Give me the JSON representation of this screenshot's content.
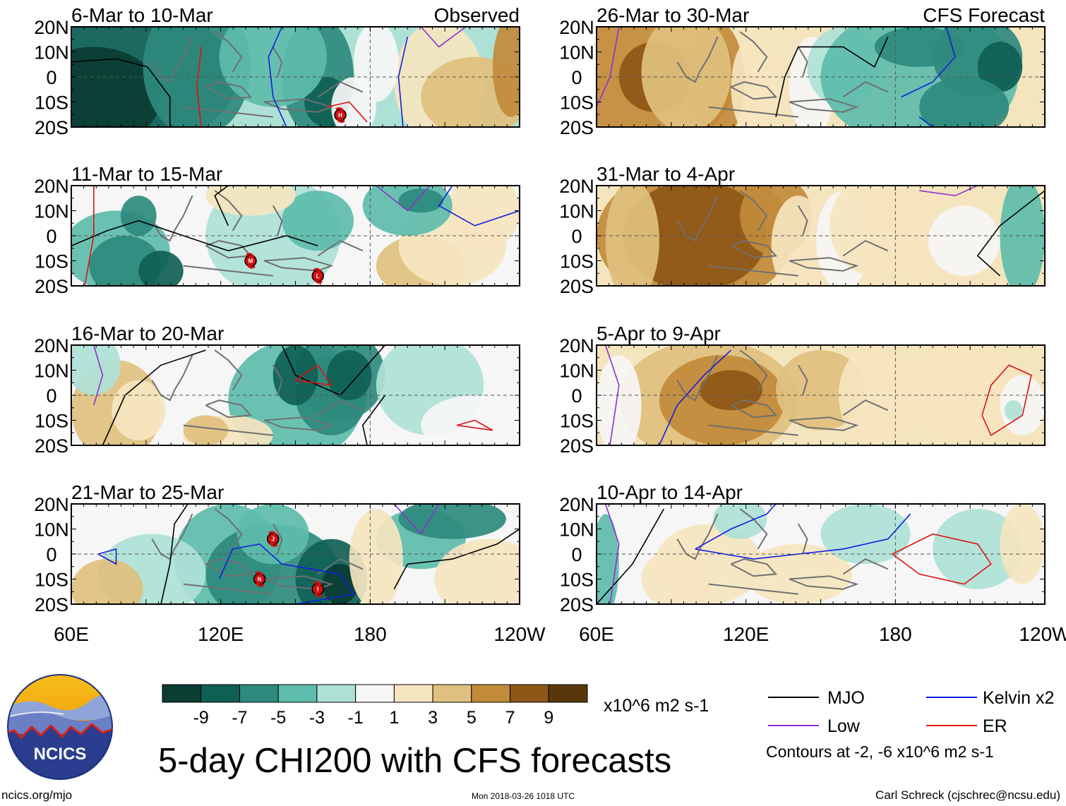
{
  "column_labels": {
    "left": "Observed",
    "right": "CFS Forecast"
  },
  "y_ticks": [
    "20N",
    "10N",
    "0",
    "10S",
    "20S"
  ],
  "x_ticks": [
    "60E",
    "120E",
    "180",
    "120W"
  ],
  "panels": [
    {
      "id": "p-obs-1",
      "period": "6-Mar to 10-Mar",
      "tag_key": "left"
    },
    {
      "id": "p-obs-2",
      "period": "11-Mar to 15-Mar"
    },
    {
      "id": "p-obs-3",
      "period": "16-Mar to 20-Mar"
    },
    {
      "id": "p-obs-4",
      "period": "21-Mar to 25-Mar"
    },
    {
      "id": "p-fc-1",
      "period": "26-Mar to 30-Mar",
      "tag_key": "right"
    },
    {
      "id": "p-fc-2",
      "period": "31-Mar to 4-Apr"
    },
    {
      "id": "p-fc-3",
      "period": "5-Apr to 9-Apr"
    },
    {
      "id": "p-fc-4",
      "period": "10-Apr to 14-Apr"
    }
  ],
  "colorbar": {
    "colors": [
      "#0b3d33",
      "#0f5f55",
      "#2e8a7d",
      "#5dbcab",
      "#aee1d6",
      "#f6f6f6",
      "#f5e5bf",
      "#e0c07e",
      "#c18b3b",
      "#8e5716",
      "#5a370b"
    ],
    "labels": [
      "-9",
      "-7",
      "-5",
      "-3",
      "-1",
      "1",
      "3",
      "5",
      "7",
      "9"
    ],
    "units": "x10^6 m2 s-1"
  },
  "legend": {
    "items": [
      {
        "label": "MJO",
        "color": "#000000"
      },
      {
        "label": "Kelvin x2",
        "color": "#1020e0"
      },
      {
        "label": "Low",
        "color": "#9030d0"
      },
      {
        "label": "ER",
        "color": "#e01010"
      }
    ],
    "note": "Contours at -2, -6 x10^6 m2 s-1"
  },
  "logo_text": "NCICS",
  "main_title": "5-day CHI200 with CFS forecasts",
  "footer": {
    "left": "ncics.org/mjo",
    "center": "Mon 2018-03-26 1018 UTC",
    "right": "Carl Schreck (cjschrec@ncsu.edu)"
  }
}
